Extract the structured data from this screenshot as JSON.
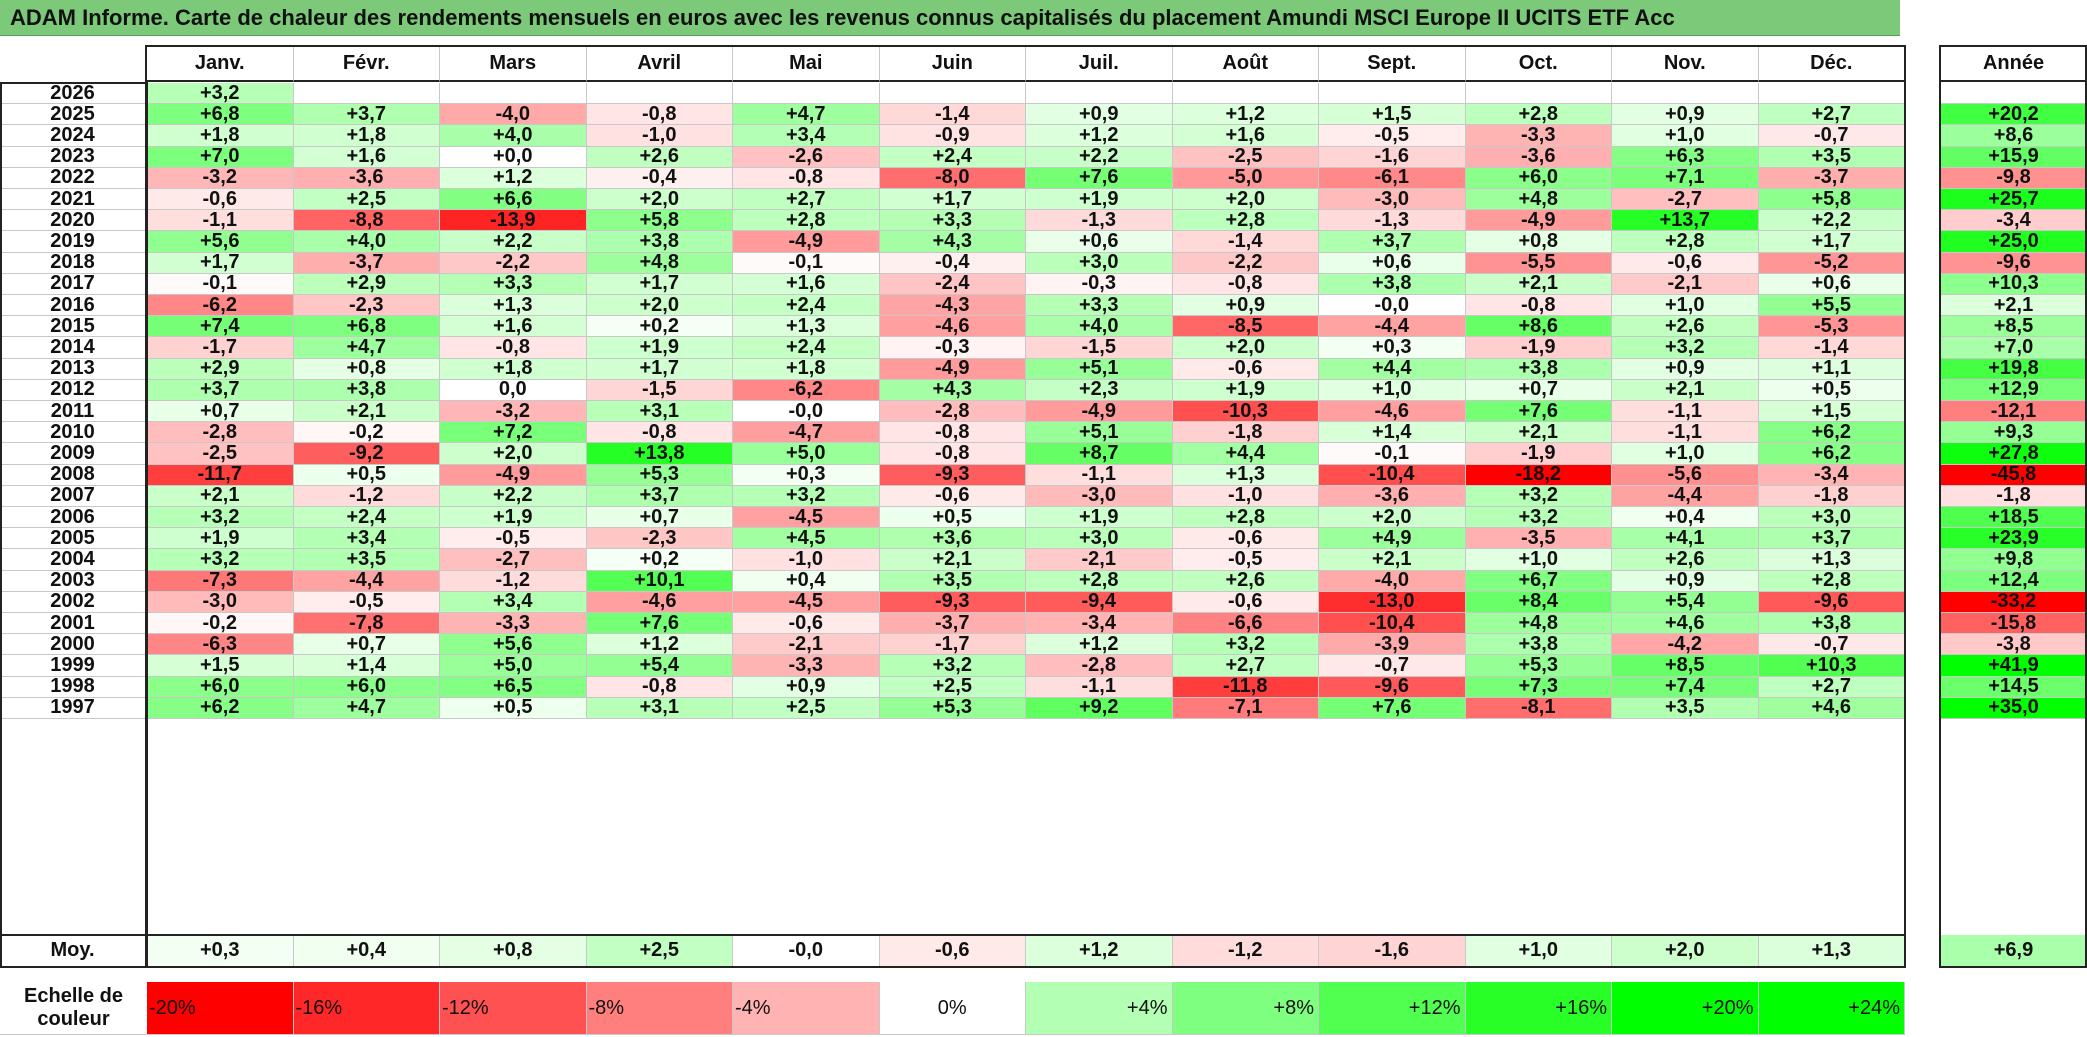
{
  "title": "ADAM Informe. Carte de chaleur des rendements mensuels en euros avec les revenus connus capitalisés du placement Amundi MSCI Europe II UCITS ETF Acc",
  "chart_data": {
    "type": "heatmap",
    "months": [
      "Janv.",
      "Févr.",
      "Mars",
      "Avril",
      "Mai",
      "Juin",
      "Juil.",
      "Août",
      "Sept.",
      "Oct.",
      "Nov.",
      "Déc."
    ],
    "year_header": "Année",
    "rows": [
      {
        "year": "2026",
        "values": [
          "+3,2",
          "",
          "",
          "",
          "",
          "",
          "",
          "",
          "",
          "",
          "",
          ""
        ],
        "annual": ""
      },
      {
        "year": "2025",
        "values": [
          "+6,8",
          "+3,7",
          "-4,0",
          "-0,8",
          "+4,7",
          "-1,4",
          "+0,9",
          "+1,2",
          "+1,5",
          "+2,8",
          "+0,9",
          "+2,7"
        ],
        "annual": "+20,2"
      },
      {
        "year": "2024",
        "values": [
          "+1,8",
          "+1,8",
          "+4,0",
          "-1,0",
          "+3,4",
          "-0,9",
          "+1,2",
          "+1,6",
          "-0,5",
          "-3,3",
          "+1,0",
          "-0,7"
        ],
        "annual": "+8,6"
      },
      {
        "year": "2023",
        "values": [
          "+7,0",
          "+1,6",
          "+0,0",
          "+2,6",
          "-2,6",
          "+2,4",
          "+2,2",
          "-2,5",
          "-1,6",
          "-3,6",
          "+6,3",
          "+3,5"
        ],
        "annual": "+15,9"
      },
      {
        "year": "2022",
        "values": [
          "-3,2",
          "-3,6",
          "+1,2",
          "-0,4",
          "-0,8",
          "-8,0",
          "+7,6",
          "-5,0",
          "-6,1",
          "+6,0",
          "+7,1",
          "-3,7"
        ],
        "annual": "-9,8"
      },
      {
        "year": "2021",
        "values": [
          "-0,6",
          "+2,5",
          "+6,6",
          "+2,0",
          "+2,7",
          "+1,7",
          "+1,9",
          "+2,0",
          "-3,0",
          "+4,8",
          "-2,7",
          "+5,8"
        ],
        "annual": "+25,7"
      },
      {
        "year": "2020",
        "values": [
          "-1,1",
          "-8,8",
          "-13,9",
          "+5,8",
          "+2,8",
          "+3,3",
          "-1,3",
          "+2,8",
          "-1,3",
          "-4,9",
          "+13,7",
          "+2,2"
        ],
        "annual": "-3,4"
      },
      {
        "year": "2019",
        "values": [
          "+5,6",
          "+4,0",
          "+2,2",
          "+3,8",
          "-4,9",
          "+4,3",
          "+0,6",
          "-1,4",
          "+3,7",
          "+0,8",
          "+2,8",
          "+1,7"
        ],
        "annual": "+25,0"
      },
      {
        "year": "2018",
        "values": [
          "+1,7",
          "-3,7",
          "-2,2",
          "+4,8",
          "-0,1",
          "-0,4",
          "+3,0",
          "-2,2",
          "+0,6",
          "-5,5",
          "-0,6",
          "-5,2"
        ],
        "annual": "-9,6"
      },
      {
        "year": "2017",
        "values": [
          "-0,1",
          "+2,9",
          "+3,3",
          "+1,7",
          "+1,6",
          "-2,4",
          "-0,3",
          "-0,8",
          "+3,8",
          "+2,1",
          "-2,1",
          "+0,6"
        ],
        "annual": "+10,3"
      },
      {
        "year": "2016",
        "values": [
          "-6,2",
          "-2,3",
          "+1,3",
          "+2,0",
          "+2,4",
          "-4,3",
          "+3,3",
          "+0,9",
          "-0,0",
          "-0,8",
          "+1,0",
          "+5,5"
        ],
        "annual": "+2,1"
      },
      {
        "year": "2015",
        "values": [
          "+7,4",
          "+6,8",
          "+1,6",
          "+0,2",
          "+1,3",
          "-4,6",
          "+4,0",
          "-8,5",
          "-4,4",
          "+8,6",
          "+2,6",
          "-5,3"
        ],
        "annual": "+8,5"
      },
      {
        "year": "2014",
        "values": [
          "-1,7",
          "+4,7",
          "-0,8",
          "+1,9",
          "+2,4",
          "-0,3",
          "-1,5",
          "+2,0",
          "+0,3",
          "-1,9",
          "+3,2",
          "-1,4"
        ],
        "annual": "+7,0"
      },
      {
        "year": "2013",
        "values": [
          "+2,9",
          "+0,8",
          "+1,8",
          "+1,7",
          "+1,8",
          "-4,9",
          "+5,1",
          "-0,6",
          "+4,4",
          "+3,8",
          "+0,9",
          "+1,1"
        ],
        "annual": "+19,8"
      },
      {
        "year": "2012",
        "values": [
          "+3,7",
          "+3,8",
          "0,0",
          "-1,5",
          "-6,2",
          "+4,3",
          "+2,3",
          "+1,9",
          "+1,0",
          "+0,7",
          "+2,1",
          "+0,5"
        ],
        "annual": "+12,9"
      },
      {
        "year": "2011",
        "values": [
          "+0,7",
          "+2,1",
          "-3,2",
          "+3,1",
          "-0,0",
          "-2,8",
          "-4,9",
          "-10,3",
          "-4,6",
          "+7,6",
          "-1,1",
          "+1,5"
        ],
        "annual": "-12,1"
      },
      {
        "year": "2010",
        "values": [
          "-2,8",
          "-0,2",
          "+7,2",
          "-0,8",
          "-4,7",
          "-0,8",
          "+5,1",
          "-1,8",
          "+1,4",
          "+2,1",
          "-1,1",
          "+6,2"
        ],
        "annual": "+9,3"
      },
      {
        "year": "2009",
        "values": [
          "-2,5",
          "-9,2",
          "+2,0",
          "+13,8",
          "+5,0",
          "-0,8",
          "+8,7",
          "+4,4",
          "-0,1",
          "-1,9",
          "+1,0",
          "+6,2"
        ],
        "annual": "+27,8"
      },
      {
        "year": "2008",
        "values": [
          "-11,7",
          "+0,5",
          "-4,9",
          "+5,3",
          "+0,3",
          "-9,3",
          "-1,1",
          "+1,3",
          "-10,4",
          "-18,2",
          "-5,6",
          "-3,4"
        ],
        "annual": "-45,8"
      },
      {
        "year": "2007",
        "values": [
          "+2,1",
          "-1,2",
          "+2,2",
          "+3,7",
          "+3,2",
          "-0,6",
          "-3,0",
          "-1,0",
          "-3,6",
          "+3,2",
          "-4,4",
          "-1,8"
        ],
        "annual": "-1,8"
      },
      {
        "year": "2006",
        "values": [
          "+3,2",
          "+2,4",
          "+1,9",
          "+0,7",
          "-4,5",
          "+0,5",
          "+1,9",
          "+2,8",
          "+2,0",
          "+3,2",
          "+0,4",
          "+3,0"
        ],
        "annual": "+18,5"
      },
      {
        "year": "2005",
        "values": [
          "+1,9",
          "+3,4",
          "-0,5",
          "-2,3",
          "+4,5",
          "+3,6",
          "+3,0",
          "-0,6",
          "+4,9",
          "-3,5",
          "+4,1",
          "+3,7"
        ],
        "annual": "+23,9"
      },
      {
        "year": "2004",
        "values": [
          "+3,2",
          "+3,5",
          "-2,7",
          "+0,2",
          "-1,0",
          "+2,1",
          "-2,1",
          "-0,5",
          "+2,1",
          "+1,0",
          "+2,6",
          "+1,3"
        ],
        "annual": "+9,8"
      },
      {
        "year": "2003",
        "values": [
          "-7,3",
          "-4,4",
          "-1,2",
          "+10,1",
          "+0,4",
          "+3,5",
          "+2,8",
          "+2,6",
          "-4,0",
          "+6,7",
          "+0,9",
          "+2,8"
        ],
        "annual": "+12,4"
      },
      {
        "year": "2002",
        "values": [
          "-3,0",
          "-0,5",
          "+3,4",
          "-4,6",
          "-4,5",
          "-9,3",
          "-9,4",
          "-0,6",
          "-13,0",
          "+8,4",
          "+5,4",
          "-9,6"
        ],
        "annual": "-33,2"
      },
      {
        "year": "2001",
        "values": [
          "-0,2",
          "-7,8",
          "-3,3",
          "+7,6",
          "-0,6",
          "-3,7",
          "-3,4",
          "-6,6",
          "-10,4",
          "+4,8",
          "+4,6",
          "+3,8"
        ],
        "annual": "-15,8"
      },
      {
        "year": "2000",
        "values": [
          "-6,3",
          "+0,7",
          "+5,6",
          "+1,2",
          "-2,1",
          "-1,7",
          "+1,2",
          "+3,2",
          "-3,9",
          "+3,8",
          "-4,2",
          "-0,7"
        ],
        "annual": "-3,8"
      },
      {
        "year": "1999",
        "values": [
          "+1,5",
          "+1,4",
          "+5,0",
          "+5,4",
          "-3,3",
          "+3,2",
          "-2,8",
          "+2,7",
          "-0,7",
          "+5,3",
          "+8,5",
          "+10,3"
        ],
        "annual": "+41,9"
      },
      {
        "year": "1998",
        "values": [
          "+6,0",
          "+6,0",
          "+6,5",
          "-0,8",
          "+0,9",
          "+2,5",
          "-1,1",
          "-11,8",
          "-9,6",
          "+7,3",
          "+7,4",
          "+2,7"
        ],
        "annual": "+14,5"
      },
      {
        "year": "1997",
        "values": [
          "+6,2",
          "+4,7",
          "+0,5",
          "+3,1",
          "+2,5",
          "+5,3",
          "+9,2",
          "-7,1",
          "+7,6",
          "-8,1",
          "+3,5",
          "+4,6"
        ],
        "annual": "+35,0"
      }
    ],
    "average": {
      "label": "Moy.",
      "values": [
        "+0,3",
        "+0,4",
        "+0,8",
        "+2,5",
        "-0,0",
        "-0,6",
        "+1,2",
        "-1,2",
        "-1,6",
        "+1,0",
        "+2,0",
        "+1,3"
      ],
      "annual": "+6,9"
    },
    "scale": {
      "label_line1": "Echelle de",
      "label_line2": "couleur",
      "steps": [
        "-20%",
        "-16%",
        "-12%",
        "-8%",
        "-4%",
        "0%",
        "+4%",
        "+8%",
        "+12%",
        "+16%",
        "+20%",
        "+24%"
      ]
    },
    "colors": {
      "negative": "#ff0000",
      "neutral": "#ffffff",
      "positive": "#00ff00",
      "title_bg": "#7cc97a"
    }
  }
}
